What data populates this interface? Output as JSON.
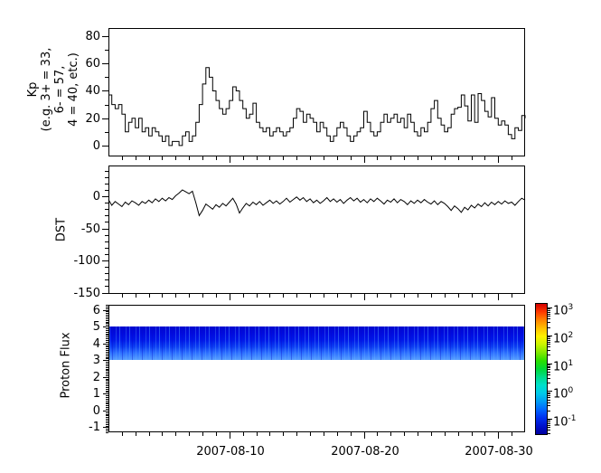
{
  "figure": {
    "background": "#ffffff",
    "description": "Stacked time-series panels: Kp index, DST index, and a Proton Flux spectrogram with log colorbar",
    "axis_color": "#000000",
    "line_color": "#000000"
  },
  "x_axis": {
    "start_date": "2007-08-01",
    "end_date": "2007-09-01",
    "unit": "days since 2007-08-01",
    "labels": [
      "2007-08-10",
      "2007-08-20",
      "2007-08-30"
    ]
  },
  "chart_data": [
    {
      "id": "kp",
      "type": "line",
      "step": true,
      "line_color": "#000000",
      "ylabel_lines": [
        "Kp",
        "(e.g. 3+ = 33,",
        "6- = 57,",
        "4 = 40, etc.)"
      ],
      "ylim": [
        -8,
        86
      ],
      "y_major_ticks": [
        0,
        20,
        40,
        60,
        80
      ],
      "y_minor_step": 10,
      "xlim_days": [
        0,
        31
      ],
      "x_major_ticks": [
        {
          "day": 9,
          "label": "2007-08-10"
        },
        {
          "day": 19,
          "label": "2007-08-20"
        },
        {
          "day": 29,
          "label": "2007-08-30"
        }
      ],
      "x_minor_step_days": 1,
      "show_x_tick_labels": false,
      "sample_step_days": 0.25,
      "values": [
        37,
        30,
        27,
        30,
        23,
        10,
        17,
        20,
        13,
        20,
        10,
        13,
        7,
        13,
        10,
        7,
        3,
        7,
        0,
        3,
        3,
        0,
        7,
        10,
        3,
        7,
        17,
        30,
        45,
        57,
        50,
        40,
        33,
        27,
        23,
        27,
        33,
        43,
        40,
        33,
        27,
        20,
        23,
        31,
        17,
        13,
        10,
        13,
        7,
        10,
        13,
        10,
        7,
        10,
        13,
        20,
        27,
        25,
        17,
        23,
        20,
        17,
        10,
        17,
        13,
        7,
        3,
        7,
        13,
        17,
        13,
        7,
        3,
        7,
        10,
        13,
        25,
        17,
        10,
        7,
        10,
        17,
        23,
        17,
        20,
        23,
        17,
        20,
        13,
        23,
        17,
        10,
        7,
        13,
        10,
        17,
        27,
        33,
        20,
        15,
        10,
        13,
        23,
        27,
        28,
        37,
        29,
        18,
        37,
        17,
        38,
        33,
        25,
        21,
        35,
        20,
        15,
        18,
        15,
        8,
        5,
        13,
        11,
        22,
        20
      ]
    },
    {
      "id": "dst",
      "type": "line",
      "step": false,
      "line_color": "#000000",
      "ylabel": "DST",
      "ylim": [
        -152,
        48
      ],
      "y_major_ticks": [
        0,
        -50,
        -100,
        -150
      ],
      "y_minor_step": 10,
      "xlim_days": [
        0,
        31
      ],
      "x_major_ticks": [
        {
          "day": 9,
          "label": "2007-08-10"
        },
        {
          "day": 19,
          "label": "2007-08-20"
        },
        {
          "day": 29,
          "label": "2007-08-30"
        }
      ],
      "x_minor_step_days": 1,
      "show_x_tick_labels": false,
      "sample_step_days": 0.25,
      "values": [
        -5,
        -14,
        -8,
        -12,
        -16,
        -9,
        -13,
        -7,
        -10,
        -14,
        -8,
        -11,
        -6,
        -10,
        -4,
        -8,
        -3,
        -7,
        -2,
        -5,
        1,
        5,
        10,
        7,
        4,
        8,
        -10,
        -30,
        -22,
        -12,
        -16,
        -20,
        -13,
        -17,
        -11,
        -15,
        -9,
        -3,
        -12,
        -26,
        -18,
        -11,
        -15,
        -9,
        -13,
        -8,
        -14,
        -10,
        -6,
        -11,
        -7,
        -12,
        -8,
        -3,
        -9,
        -5,
        -1,
        -6,
        -2,
        -8,
        -4,
        -10,
        -6,
        -11,
        -7,
        -2,
        -8,
        -4,
        -9,
        -5,
        -11,
        -6,
        -2,
        -7,
        -3,
        -9,
        -5,
        -10,
        -4,
        -8,
        -3,
        -7,
        -12,
        -6,
        -9,
        -4,
        -10,
        -5,
        -8,
        -13,
        -7,
        -11,
        -6,
        -10,
        -5,
        -9,
        -12,
        -7,
        -13,
        -8,
        -11,
        -16,
        -22,
        -15,
        -19,
        -25,
        -17,
        -21,
        -14,
        -18,
        -12,
        -16,
        -10,
        -15,
        -9,
        -13,
        -8,
        -12,
        -7,
        -11,
        -9,
        -14,
        -8,
        -3,
        -6
      ]
    },
    {
      "id": "proton_flux",
      "type": "heatmap",
      "ylabel": "Proton Flux",
      "ylim": [
        -1.3,
        6.3
      ],
      "y_major_ticks": [
        -1,
        0,
        1,
        2,
        3,
        4,
        5,
        6
      ],
      "y_minor_step": 0.1,
      "xlim_days": [
        0,
        31
      ],
      "x_major_ticks": [
        {
          "day": 9,
          "label": "2007-08-10"
        },
        {
          "day": 19,
          "label": "2007-08-20"
        },
        {
          "day": 29,
          "label": "2007-08-30"
        }
      ],
      "x_minor_step_days": 1,
      "show_x_tick_labels": true,
      "band": {
        "y_from": 3,
        "y_to": 5,
        "base_colors_top_to_bottom": [
          "#0005cf",
          "#000bdf",
          "#0017e8",
          "#0b3cf2",
          "#2f72ff",
          "#57a0ff"
        ],
        "streak_color": "#4f9cff",
        "flux_level_log10_range": [
          -1,
          0.5
        ]
      },
      "colorbar": {
        "colormap": "jet",
        "log10_range": [
          -1.55,
          3.13
        ],
        "ticks": [
          {
            "exponent": 3,
            "label": "10^3"
          },
          {
            "exponent": 2,
            "label": "10^2"
          },
          {
            "exponent": 1,
            "label": "10^1"
          },
          {
            "exponent": 0,
            "label": "10^0"
          },
          {
            "exponent": -1,
            "label": "10^-1"
          }
        ],
        "gradient_top_to_bottom": [
          "#d40000",
          "#ff3b00",
          "#ff8400",
          "#ffc100",
          "#fff200",
          "#c8f400",
          "#7fe800",
          "#2adf00",
          "#00d936",
          "#00dc8c",
          "#00e0cc",
          "#00c9ea",
          "#009cf4",
          "#0064ff",
          "#0030f0",
          "#0011cc",
          "#0000a0"
        ]
      }
    }
  ]
}
